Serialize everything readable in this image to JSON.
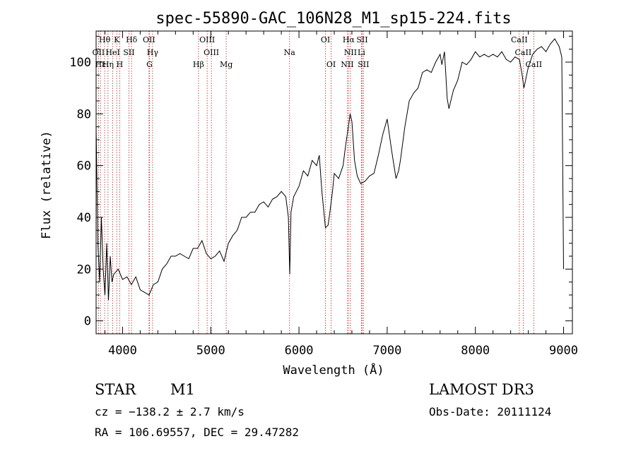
{
  "chart_data": {
    "type": "line",
    "title": "spec-55890-GAC_106N28_M1_sp15-224.fits",
    "xlabel": "Wavelength (Å)",
    "ylabel": "Flux (relative)",
    "xlim": [
      3700,
      9100
    ],
    "ylim": [
      -5,
      112
    ],
    "x_ticks": [
      4000,
      5000,
      6000,
      7000,
      8000,
      9000
    ],
    "y_ticks": [
      0,
      20,
      40,
      60,
      80,
      100
    ],
    "grid": false,
    "series": [
      {
        "x": [
          3700,
          3720,
          3740,
          3760,
          3780,
          3800,
          3820,
          3840,
          3860,
          3880,
          3900,
          3950,
          4000,
          4050,
          4100,
          4150,
          4200,
          4250,
          4300,
          4350,
          4400,
          4450,
          4500,
          4550,
          4600,
          4650,
          4700,
          4750,
          4800,
          4850,
          4900,
          4950,
          5000,
          5050,
          5100,
          5150,
          5200,
          5250,
          5300,
          5350,
          5400,
          5450,
          5500,
          5550,
          5600,
          5650,
          5700,
          5750,
          5800,
          5850,
          5880,
          5895,
          5910,
          5940,
          6000,
          6050,
          6100,
          6150,
          6200,
          6230,
          6260,
          6300,
          6330,
          6350,
          6380,
          6400,
          6450,
          6500,
          6530,
          6560,
          6580,
          6600,
          6630,
          6660,
          6700,
          6750,
          6800,
          6850,
          6900,
          6950,
          7000,
          7050,
          7100,
          7130,
          7150,
          7200,
          7250,
          7300,
          7350,
          7400,
          7450,
          7500,
          7550,
          7600,
          7620,
          7650,
          7680,
          7700,
          7750,
          7800,
          7850,
          7900,
          7950,
          8000,
          8050,
          8100,
          8150,
          8200,
          8250,
          8300,
          8350,
          8400,
          8450,
          8500,
          8530,
          8550,
          8600,
          8650,
          8700,
          8750,
          8800,
          8850,
          8900,
          8950,
          8980,
          9000
        ],
        "values": [
          75,
          30,
          15,
          40,
          20,
          10,
          30,
          8,
          25,
          15,
          18,
          20,
          16,
          17,
          14,
          17,
          12,
          11,
          10,
          14,
          15,
          20,
          22,
          25,
          25,
          26,
          25,
          24,
          28,
          28,
          31,
          26,
          24,
          25,
          27,
          23,
          30,
          33,
          35,
          40,
          40,
          42,
          42,
          45,
          46,
          44,
          47,
          48,
          50,
          48,
          40,
          18,
          42,
          48,
          52,
          58,
          56,
          62,
          60,
          64,
          50,
          36,
          37,
          42,
          50,
          57,
          55,
          60,
          68,
          75,
          80,
          77,
          62,
          56,
          53,
          54,
          56,
          57,
          64,
          72,
          78,
          66,
          55,
          58,
          62,
          75,
          85,
          88,
          90,
          96,
          97,
          96,
          100,
          103,
          99,
          104,
          86,
          82,
          89,
          93,
          100,
          99,
          101,
          104,
          102,
          103,
          102,
          103,
          102,
          104,
          101,
          100,
          102,
          101,
          95,
          90,
          98,
          103,
          105,
          106,
          104,
          107,
          109,
          106,
          102,
          20
        ]
      }
    ],
    "line_markers": [
      {
        "label": "Hθ",
        "x": 3797,
        "row": 0
      },
      {
        "label": "K",
        "x": 3934,
        "row": 0
      },
      {
        "label": "Hδ",
        "x": 4102,
        "row": 0
      },
      {
        "label": "OII",
        "x": 4300,
        "row": 0
      },
      {
        "label": "OIII",
        "x": 4959,
        "row": 0
      },
      {
        "label": "OI",
        "x": 6300,
        "row": 0
      },
      {
        "label": "Hα",
        "x": 6563,
        "row": 0
      },
      {
        "label": "SII",
        "x": 6716,
        "row": 0
      },
      {
        "label": "CaII",
        "x": 8498,
        "row": 0
      },
      {
        "label": "OII",
        "x": 3727,
        "row": 1
      },
      {
        "label": "HeI",
        "x": 3889,
        "row": 1
      },
      {
        "label": "SII",
        "x": 4072,
        "row": 1
      },
      {
        "label": "Hγ",
        "x": 4340,
        "row": 1
      },
      {
        "label": "OIII",
        "x": 5007,
        "row": 1
      },
      {
        "label": "Na",
        "x": 5893,
        "row": 1
      },
      {
        "label": "NII",
        "x": 6584,
        "row": 1
      },
      {
        "label": "Li",
        "x": 6708,
        "row": 1
      },
      {
        "label": "CaII",
        "x": 8542,
        "row": 1
      },
      {
        "label": "Hε",
        "x": 3750,
        "row": 2
      },
      {
        "label": "Hη",
        "x": 3835,
        "row": 2
      },
      {
        "label": "H",
        "x": 3968,
        "row": 2
      },
      {
        "label": "G",
        "x": 4305,
        "row": 2
      },
      {
        "label": "Hβ",
        "x": 4861,
        "row": 2
      },
      {
        "label": "Mg",
        "x": 5175,
        "row": 2
      },
      {
        "label": "OI",
        "x": 6364,
        "row": 2
      },
      {
        "label": "NII",
        "x": 6548,
        "row": 2
      },
      {
        "label": "SII",
        "x": 6731,
        "row": 2
      },
      {
        "label": "CaII",
        "x": 8662,
        "row": 2
      }
    ]
  },
  "info": {
    "object_class": "STAR",
    "subclass": "M1",
    "survey": "LAMOST DR3",
    "redshift": "cz = −138.2 ± 2.7 km/s",
    "obs_date": "Obs-Date: 20111124",
    "coords": "RA = 106.69557, DEC =  29.47282"
  },
  "colors": {
    "spectrum": "#000000",
    "marker_line": "#b22222",
    "axes": "#000000"
  }
}
